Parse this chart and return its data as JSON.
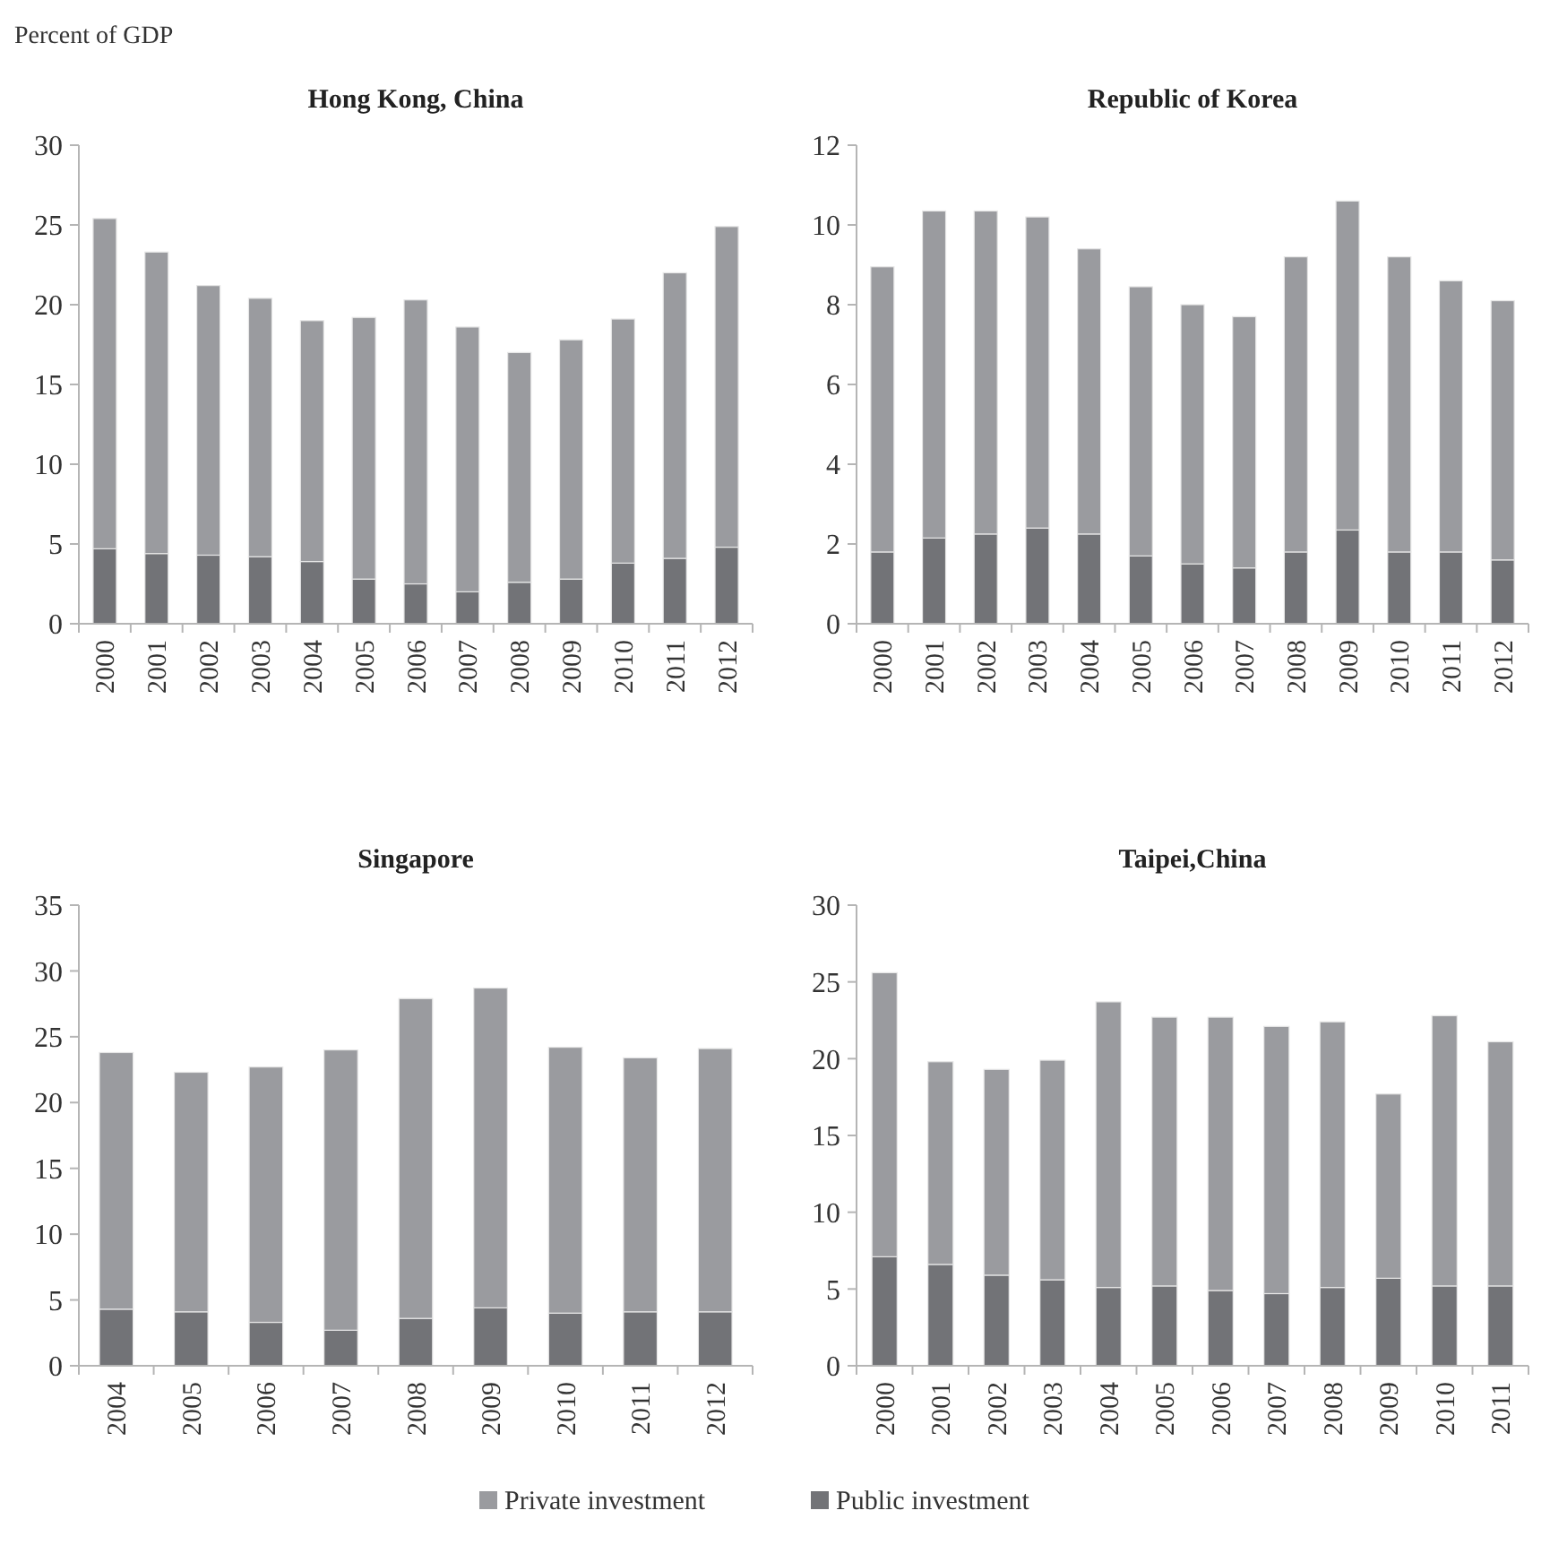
{
  "chart_data": [
    {
      "type": "bar",
      "title": "Hong Kong, China",
      "ylabel": "Percent of GDP",
      "stacked": true,
      "categories": [
        "2000",
        "2001",
        "2002",
        "2003",
        "2004",
        "2005",
        "2006",
        "2007",
        "2008",
        "2009",
        "2010",
        "2011",
        "2012"
      ],
      "ylim": [
        0,
        30
      ],
      "yticks": [
        0,
        5,
        10,
        15,
        20,
        25,
        30
      ],
      "legend": "bottom",
      "series": [
        {
          "name": "Public investment",
          "color": "#727377",
          "values": [
            4.7,
            4.4,
            4.3,
            4.2,
            3.9,
            2.8,
            2.5,
            2.0,
            2.6,
            2.8,
            3.8,
            4.1,
            4.8
          ]
        },
        {
          "name": "Private investment",
          "color": "#9a9b9f",
          "values": [
            20.7,
            18.9,
            16.9,
            16.2,
            15.1,
            16.4,
            17.8,
            16.6,
            14.4,
            15.0,
            15.3,
            17.9,
            20.1
          ]
        }
      ]
    },
    {
      "type": "bar",
      "title": "Republic of Korea",
      "stacked": true,
      "categories": [
        "2000",
        "2001",
        "2002",
        "2003",
        "2004",
        "2005",
        "2006",
        "2007",
        "2008",
        "2009",
        "2010",
        "2011",
        "2012"
      ],
      "ylim": [
        0,
        12
      ],
      "yticks": [
        0,
        2,
        4,
        6,
        8,
        10,
        12
      ],
      "legend": "bottom",
      "series": [
        {
          "name": "Public investment",
          "color": "#727377",
          "values": [
            1.8,
            2.15,
            2.25,
            2.4,
            2.25,
            1.7,
            1.5,
            1.4,
            1.8,
            2.35,
            1.8,
            1.8,
            1.6
          ]
        },
        {
          "name": "Private investment",
          "color": "#9a9b9f",
          "values": [
            7.15,
            8.2,
            8.1,
            7.8,
            7.15,
            6.75,
            6.5,
            6.3,
            7.4,
            8.25,
            7.4,
            6.8,
            6.5
          ]
        }
      ]
    },
    {
      "type": "bar",
      "title": "Singapore",
      "stacked": true,
      "categories": [
        "2004",
        "2005",
        "2006",
        "2007",
        "2008",
        "2009",
        "2010",
        "2011",
        "2012"
      ],
      "ylim": [
        0,
        35
      ],
      "yticks": [
        0,
        5,
        10,
        15,
        20,
        25,
        30,
        35
      ],
      "legend": "bottom",
      "series": [
        {
          "name": "Public investment",
          "color": "#727377",
          "values": [
            4.3,
            4.1,
            3.3,
            2.7,
            3.6,
            4.4,
            4.0,
            4.1,
            4.1
          ]
        },
        {
          "name": "Private investment",
          "color": "#9a9b9f",
          "values": [
            19.5,
            18.2,
            19.4,
            21.3,
            24.3,
            24.3,
            20.2,
            19.3,
            20.0
          ]
        }
      ]
    },
    {
      "type": "bar",
      "title": "Taipei,China",
      "stacked": true,
      "categories": [
        "2000",
        "2001",
        "2002",
        "2003",
        "2004",
        "2005",
        "2006",
        "2007",
        "2008",
        "2009",
        "2010",
        "2011"
      ],
      "ylim": [
        0,
        30
      ],
      "yticks": [
        0,
        5,
        10,
        15,
        20,
        25,
        30
      ],
      "legend": "bottom",
      "series": [
        {
          "name": "Public investment",
          "color": "#727377",
          "values": [
            7.1,
            6.6,
            5.9,
            5.6,
            5.1,
            5.2,
            4.9,
            4.7,
            5.1,
            5.7,
            5.2,
            5.2
          ]
        },
        {
          "name": "Private investment",
          "color": "#9a9b9f",
          "values": [
            18.5,
            13.2,
            13.4,
            14.3,
            18.6,
            17.5,
            17.8,
            17.4,
            17.3,
            12.0,
            17.6,
            15.9
          ]
        }
      ]
    }
  ]
}
